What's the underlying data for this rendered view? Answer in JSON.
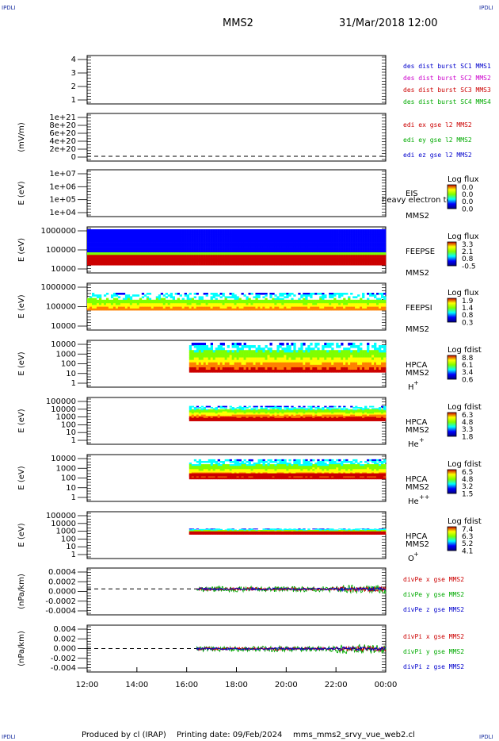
{
  "header": {
    "spacecraft": "MMS2",
    "datetime": "31/Mar/2018 12:00",
    "corner_label": "IPDLI"
  },
  "footer": {
    "produced_by": "Produced by cl (IRAP)",
    "printing_date": "Printing date: 09/Feb/2024",
    "filename": "mms_mms2_srvy_vue_web2.cl"
  },
  "chart_data": {
    "type": "multi-panel time series",
    "x": {
      "ticks": [
        "12:00",
        "14:00",
        "16:00",
        "18:00",
        "20:00",
        "22:00",
        "00:00"
      ],
      "range_hours": [
        12,
        24
      ]
    },
    "panels": [
      {
        "id": "burst",
        "type": "line",
        "ylabel": "",
        "ticks": [
          "4",
          "3",
          "2",
          "1"
        ],
        "ylim": [
          0.5,
          4.5
        ],
        "legend": [
          {
            "text": "des dist burst SC1 MMS1",
            "color": "#0000cc"
          },
          {
            "text": "des dist burst SC2 MMS2",
            "color": "#cc00cc"
          },
          {
            "text": "des dist burst SC3 MMS3",
            "color": "#cc0000"
          },
          {
            "text": "des dist burst SC4 MMS4",
            "color": "#00aa00"
          }
        ]
      },
      {
        "id": "edi",
        "type": "line",
        "ylabel": "(mV/m)",
        "ticks": [
          "1e+21",
          "8e+20",
          "6e+20",
          "4e+20",
          "2e+20",
          "0"
        ],
        "ylim": [
          0,
          1e+21
        ],
        "legend": [
          {
            "text": "edi ex gse l2 MMS2",
            "color": "#cc0000"
          },
          {
            "text": "edi ey gse l2 MMS2",
            "color": "#00aa00"
          },
          {
            "text": "edi ez gse l2 MMS2",
            "color": "#0000cc"
          }
        ]
      },
      {
        "id": "eis",
        "type": "heatmap",
        "ylabel": "E (eV)",
        "ticks": [
          "1e+07",
          "1e+06",
          "1e+05",
          "1e+04"
        ],
        "ylim": [
          10000.0,
          10000000.0
        ],
        "instrument": "EIS",
        "subtitle": "heavy electron to",
        "sc": "MMS2",
        "cbar_title": "Log flux",
        "cbar_ticks": [
          "0.0",
          "0.0",
          "0.0",
          "0.0"
        ]
      },
      {
        "id": "feepse",
        "type": "heatmap",
        "ylabel": "E (eV)",
        "ticks": [
          "1000000",
          "100000",
          "10000"
        ],
        "ylim": [
          10000.0,
          1000000.0
        ],
        "instrument": "FEEPSE",
        "sc": "MMS2",
        "cbar_title": "Log flux",
        "cbar_ticks": [
          "3.3",
          "2.1",
          "0.8",
          "-0.5"
        ],
        "coverage_hours": [
          12,
          24
        ]
      },
      {
        "id": "feepsi",
        "type": "heatmap",
        "ylabel": "E (eV)",
        "ticks": [
          "1000000",
          "100000",
          "10000"
        ],
        "ylim": [
          10000.0,
          1000000.0
        ],
        "instrument": "FEEPSI",
        "sc": "MMS2",
        "cbar_title": "Log flux",
        "cbar_ticks": [
          "1.9",
          "1.4",
          "0.8",
          "0.3"
        ],
        "coverage_hours": [
          12,
          24
        ]
      },
      {
        "id": "hpca_h",
        "type": "heatmap",
        "ylabel": "E (eV)",
        "ticks": [
          "10000",
          "1000",
          "100",
          "10",
          "1"
        ],
        "ylim": [
          1,
          10000.0
        ],
        "instrument": "HPCA",
        "sc": "MMS2",
        "ion": "H",
        "ion_charge": "+",
        "cbar_title": "Log fdist",
        "cbar_ticks": [
          "8.8",
          "6.1",
          "3.4",
          "0.6"
        ],
        "coverage_hours": [
          16.1,
          24
        ]
      },
      {
        "id": "hpca_he",
        "type": "heatmap",
        "ylabel": "E (eV)",
        "ticks": [
          "100000",
          "10000",
          "1000",
          "100",
          "10",
          "1"
        ],
        "ylim": [
          1,
          100000.0
        ],
        "instrument": "HPCA",
        "sc": "MMS2",
        "ion": "He",
        "ion_charge": "+",
        "cbar_title": "Log fdist",
        "cbar_ticks": [
          "6.3",
          "4.8",
          "3.3",
          "1.8"
        ],
        "coverage_hours": [
          16.1,
          24
        ]
      },
      {
        "id": "hpca_hepp",
        "type": "heatmap",
        "ylabel": "E (eV)",
        "ticks": [
          "10000",
          "1000",
          "100",
          "10",
          "1"
        ],
        "ylim": [
          1,
          10000.0
        ],
        "instrument": "HPCA",
        "sc": "MMS2",
        "ion": "He",
        "ion_charge": "++",
        "cbar_title": "Log fdist",
        "cbar_ticks": [
          "6.5",
          "4.8",
          "3.2",
          "1.5"
        ],
        "coverage_hours": [
          16.1,
          24
        ]
      },
      {
        "id": "hpca_o",
        "type": "heatmap",
        "ylabel": "E (eV)",
        "ticks": [
          "100000",
          "10000",
          "1000",
          "100",
          "10",
          "1"
        ],
        "ylim": [
          1,
          100000.0
        ],
        "instrument": "HPCA",
        "sc": "MMS2",
        "ion": "O",
        "ion_charge": "+",
        "cbar_title": "Log fdist",
        "cbar_ticks": [
          "7.4",
          "6.3",
          "5.2",
          "4.1"
        ],
        "coverage_hours": [
          16.1,
          24
        ]
      },
      {
        "id": "divpe",
        "type": "line",
        "ylabel": "(nPa/km)",
        "ticks": [
          "0.0004",
          "0.0002",
          "0.0000",
          "-0.0002",
          "-0.0004"
        ],
        "ylim": [
          -0.0005,
          0.0004
        ],
        "zero_line": true,
        "coverage_hours": [
          16.4,
          24
        ],
        "legend": [
          {
            "text": "divPe x gse MMS2",
            "color": "#cc0000"
          },
          {
            "text": "divPe y gse MMS2",
            "color": "#00aa00"
          },
          {
            "text": "divPe z gse MMS2",
            "color": "#0000cc"
          }
        ]
      },
      {
        "id": "divpi",
        "type": "line",
        "ylabel": "(nPa/km)",
        "ticks": [
          "0.004",
          "0.002",
          "0.000",
          "-0.002",
          "-0.004"
        ],
        "ylim": [
          -0.0045,
          0.0045
        ],
        "zero_line": true,
        "coverage_hours": [
          16.4,
          24
        ],
        "legend": [
          {
            "text": "divPi x gse MMS2",
            "color": "#cc0000"
          },
          {
            "text": "divPi y gse MMS2",
            "color": "#00aa00"
          },
          {
            "text": "divPi z gse MMS2",
            "color": "#0000cc"
          }
        ]
      }
    ]
  }
}
